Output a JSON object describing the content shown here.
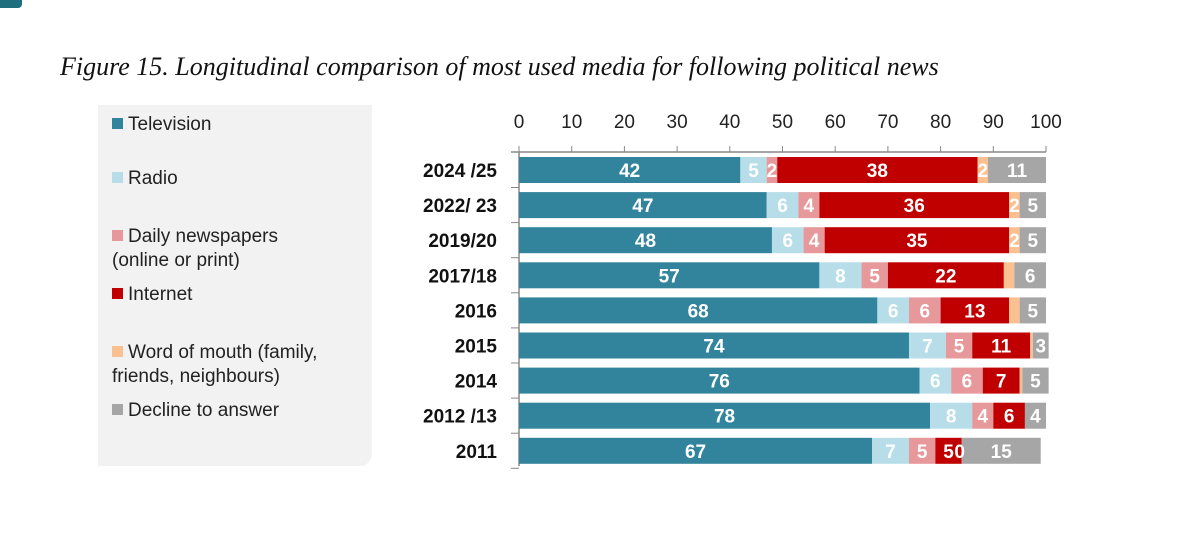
{
  "title": "Figure 15. Longitudinal comparison of most used media for following political news",
  "chart_data": {
    "type": "bar",
    "orientation": "horizontal",
    "stacked": true,
    "title": "Figure 15. Longitudinal comparison of most used media for following political news",
    "xlim": [
      0,
      100
    ],
    "xticks": [
      0,
      10,
      20,
      30,
      40,
      50,
      60,
      70,
      80,
      90,
      100
    ],
    "xtick_position": "top",
    "legend_position": "left",
    "categories": [
      "2024 /25",
      "2022/ 23",
      "2019/20",
      "2017/18",
      "2016",
      "2015",
      "2014",
      "2012 /13",
      "2011"
    ],
    "series": [
      {
        "name": "Television",
        "color": "#31849b",
        "values": [
          42,
          47,
          48,
          57,
          68,
          74,
          76,
          78,
          67
        ]
      },
      {
        "name": "Radio",
        "color": "#b7dde8",
        "values": [
          5,
          6,
          6,
          8,
          6,
          7,
          6,
          8,
          7
        ]
      },
      {
        "name": "Daily newspapers (online or print)",
        "color": "#e6989a",
        "values": [
          2,
          4,
          4,
          5,
          6,
          5,
          6,
          4,
          5
        ]
      },
      {
        "name": "Internet",
        "color": "#c00000",
        "values": [
          38,
          36,
          35,
          22,
          13,
          11,
          7,
          6,
          5
        ]
      },
      {
        "name": "Word of mouth (family, friends, neighbours)",
        "color": "#fac090",
        "values": [
          2,
          2,
          2,
          2,
          2,
          0.5,
          0.5,
          0,
          0
        ]
      },
      {
        "name": "Decline to answer",
        "color": "#a6a6a6",
        "values": [
          11,
          5,
          5,
          6,
          5,
          3,
          5,
          4,
          15
        ]
      }
    ],
    "unlabeled": [
      [
        4,
        3
      ],
      [
        4,
        4
      ],
      [
        4,
        5
      ],
      [
        4,
        6
      ],
      [
        4,
        7
      ]
    ]
  },
  "legend": [
    "Television",
    "Radio",
    "Daily newspapers\n(online or print)",
    "Internet",
    "Word of mouth (family,\nfriends, neighbours)",
    "Decline to answer"
  ]
}
